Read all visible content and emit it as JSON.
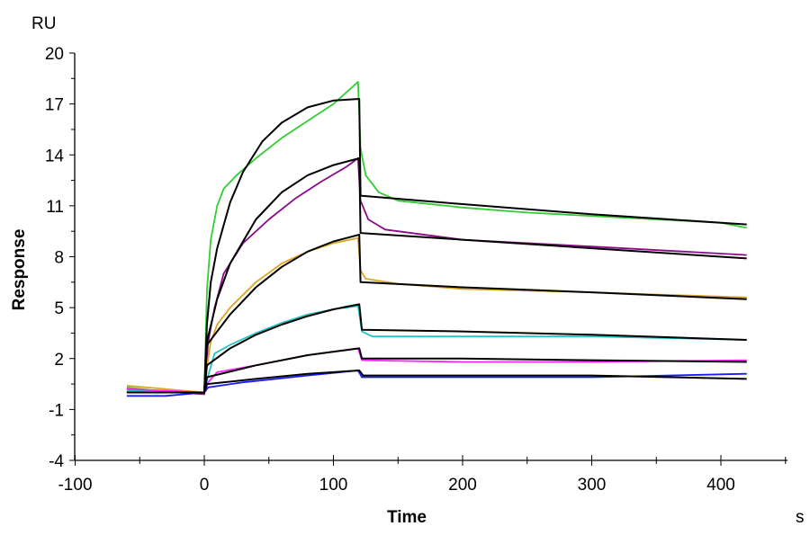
{
  "chart_data": {
    "type": "line",
    "title": "",
    "xlabel": "Time",
    "xunit": "s",
    "ylabel": "Response",
    "yunit": "RU",
    "xlim": [
      -100,
      450
    ],
    "ylim": [
      -4,
      20
    ],
    "xticks": [
      -100,
      0,
      100,
      200,
      300,
      400
    ],
    "yticks": [
      -4,
      -1,
      2,
      5,
      8,
      11,
      14,
      17,
      20
    ],
    "grid": false,
    "legend": "none",
    "fit_color": "#000000",
    "series": [
      {
        "color": "#33cc33",
        "data": [
          [
            -60,
            0.3
          ],
          [
            -30,
            0.05
          ],
          [
            0,
            -0.1
          ],
          [
            2,
            6
          ],
          [
            5,
            9
          ],
          [
            10,
            11
          ],
          [
            15,
            12
          ],
          [
            25,
            12.8
          ],
          [
            40,
            13.8
          ],
          [
            60,
            15
          ],
          [
            80,
            16
          ],
          [
            100,
            17
          ],
          [
            119,
            18.3
          ],
          [
            121,
            14.4
          ],
          [
            125,
            12.8
          ],
          [
            135,
            11.8
          ],
          [
            150,
            11.3
          ],
          [
            200,
            10.9
          ],
          [
            250,
            10.6
          ],
          [
            300,
            10.4
          ],
          [
            350,
            10.2
          ],
          [
            400,
            10.0
          ],
          [
            420,
            9.7
          ]
        ],
        "fit": [
          [
            -60,
            0
          ],
          [
            0,
            0
          ],
          [
            2,
            4
          ],
          [
            5,
            6.5
          ],
          [
            10,
            8.5
          ],
          [
            20,
            11.2
          ],
          [
            30,
            13
          ],
          [
            45,
            14.8
          ],
          [
            60,
            15.9
          ],
          [
            80,
            16.8
          ],
          [
            100,
            17.2
          ],
          [
            120,
            17.3
          ],
          [
            121,
            11.6
          ],
          [
            200,
            11.1
          ],
          [
            300,
            10.5
          ],
          [
            420,
            9.9
          ]
        ]
      },
      {
        "color": "#8b0a8b",
        "data": [
          [
            -60,
            0.2
          ],
          [
            0,
            -0.1
          ],
          [
            3,
            3
          ],
          [
            8,
            5
          ],
          [
            15,
            7
          ],
          [
            30,
            8.8
          ],
          [
            50,
            10.2
          ],
          [
            70,
            11.4
          ],
          [
            90,
            12.4
          ],
          [
            110,
            13.3
          ],
          [
            119,
            13.8
          ],
          [
            121,
            11.3
          ],
          [
            127,
            10.2
          ],
          [
            140,
            9.6
          ],
          [
            200,
            9.0
          ],
          [
            300,
            8.6
          ],
          [
            420,
            8.1
          ]
        ],
        "fit": [
          [
            0,
            0
          ],
          [
            2,
            3
          ],
          [
            10,
            5.5
          ],
          [
            20,
            7.6
          ],
          [
            40,
            10.2
          ],
          [
            60,
            11.8
          ],
          [
            80,
            12.8
          ],
          [
            100,
            13.4
          ],
          [
            120,
            13.8
          ],
          [
            121,
            9.4
          ],
          [
            200,
            9.0
          ],
          [
            300,
            8.5
          ],
          [
            420,
            7.9
          ]
        ]
      },
      {
        "color": "#daa520",
        "data": [
          [
            -60,
            0.4
          ],
          [
            0,
            0
          ],
          [
            2,
            1.5
          ],
          [
            5,
            3
          ],
          [
            10,
            4
          ],
          [
            20,
            5
          ],
          [
            40,
            6.5
          ],
          [
            60,
            7.6
          ],
          [
            80,
            8.3
          ],
          [
            100,
            8.8
          ],
          [
            119,
            9.1
          ],
          [
            121,
            7.2
          ],
          [
            125,
            6.7
          ],
          [
            150,
            6.4
          ],
          [
            200,
            6.1
          ],
          [
            300,
            5.9
          ],
          [
            420,
            5.6
          ]
        ],
        "fit": [
          [
            0,
            0
          ],
          [
            2,
            2.8
          ],
          [
            20,
            4.6
          ],
          [
            40,
            6.2
          ],
          [
            60,
            7.4
          ],
          [
            80,
            8.3
          ],
          [
            100,
            8.9
          ],
          [
            120,
            9.3
          ],
          [
            121,
            6.5
          ],
          [
            200,
            6.2
          ],
          [
            300,
            5.9
          ],
          [
            420,
            5.5
          ]
        ]
      },
      {
        "color": "#22c4c4",
        "data": [
          [
            -60,
            0.1
          ],
          [
            0,
            0
          ],
          [
            3,
            1
          ],
          [
            8,
            2.3
          ],
          [
            20,
            2.8
          ],
          [
            40,
            3.5
          ],
          [
            60,
            4.1
          ],
          [
            80,
            4.6
          ],
          [
            100,
            4.9
          ],
          [
            119,
            5.1
          ],
          [
            122,
            3.6
          ],
          [
            130,
            3.3
          ],
          [
            200,
            3.3
          ],
          [
            300,
            3.3
          ],
          [
            420,
            3.1
          ]
        ],
        "fit": [
          [
            0,
            0
          ],
          [
            2,
            1.6
          ],
          [
            20,
            2.6
          ],
          [
            40,
            3.4
          ],
          [
            60,
            4.0
          ],
          [
            80,
            4.5
          ],
          [
            100,
            4.9
          ],
          [
            120,
            5.2
          ],
          [
            122,
            3.7
          ],
          [
            200,
            3.6
          ],
          [
            300,
            3.4
          ],
          [
            420,
            3.1
          ]
        ]
      },
      {
        "color": "#ff22ff",
        "data": [
          [
            -60,
            0.2
          ],
          [
            0,
            0
          ],
          [
            3,
            0.6
          ],
          [
            10,
            1.2
          ],
          [
            40,
            1.6
          ],
          [
            80,
            2.2
          ],
          [
            119,
            2.6
          ],
          [
            122,
            1.9
          ],
          [
            200,
            1.8
          ],
          [
            300,
            1.8
          ],
          [
            420,
            1.9
          ]
        ],
        "fit": [
          [
            0,
            0
          ],
          [
            2,
            0.9
          ],
          [
            40,
            1.6
          ],
          [
            80,
            2.2
          ],
          [
            120,
            2.6
          ],
          [
            122,
            2.0
          ],
          [
            200,
            2.0
          ],
          [
            300,
            1.9
          ],
          [
            420,
            1.8
          ]
        ]
      },
      {
        "color": "#1a1aff",
        "data": [
          [
            -60,
            -0.2
          ],
          [
            -30,
            -0.2
          ],
          [
            0,
            0
          ],
          [
            3,
            0.3
          ],
          [
            30,
            0.6
          ],
          [
            80,
            1.0
          ],
          [
            119,
            1.3
          ],
          [
            122,
            0.9
          ],
          [
            200,
            0.9
          ],
          [
            300,
            0.9
          ],
          [
            420,
            1.1
          ]
        ],
        "fit": [
          [
            0,
            0
          ],
          [
            2,
            0.5
          ],
          [
            40,
            0.8
          ],
          [
            80,
            1.1
          ],
          [
            120,
            1.3
          ],
          [
            123,
            1.0
          ],
          [
            200,
            1.0
          ],
          [
            300,
            1.0
          ],
          [
            420,
            0.8
          ]
        ]
      }
    ]
  }
}
